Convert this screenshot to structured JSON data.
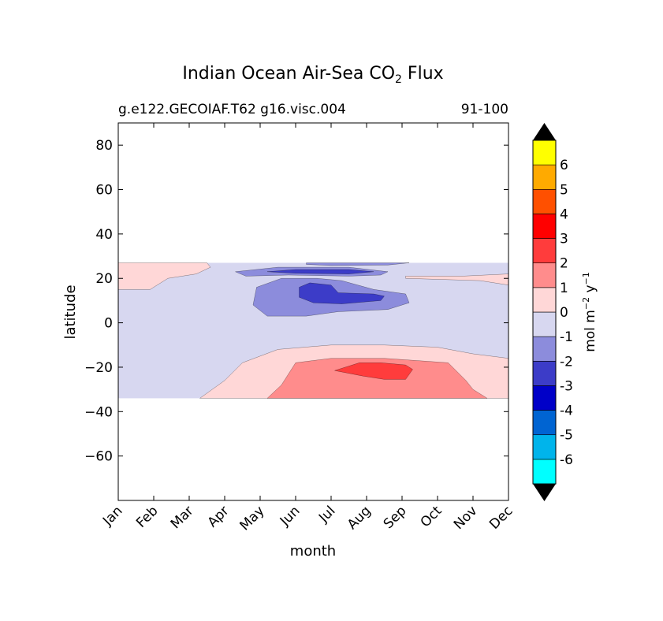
{
  "chart_data": {
    "type": "contour",
    "title_prefix": "Indian Ocean Air-Sea CO",
    "title_sub": "2",
    "title_suffix": " Flux",
    "subtitle_left": "g.e122.GECOIAF.T62 g16.visc.004",
    "subtitle_right": "91-100",
    "xlabel": "month",
    "ylabel": "latitude",
    "x_categories": [
      "Jan",
      "Feb",
      "Mar",
      "Apr",
      "May",
      "Jun",
      "Jul",
      "Aug",
      "Sep",
      "Oct",
      "Nov",
      "Dec"
    ],
    "xlim": [
      0,
      11
    ],
    "ylim": [
      -80,
      90
    ],
    "y_ticks": [
      80,
      60,
      40,
      20,
      0,
      -20,
      -40,
      -60
    ],
    "y_tick_labels": [
      "80",
      "60",
      "40",
      "20",
      "0",
      "−20",
      "−40",
      "−60"
    ],
    "data_lat_range": [
      -34,
      27
    ],
    "colorbar": {
      "label_main": "mol m",
      "label_exp1": "−2",
      "label_mid": "  y",
      "label_exp2": "−1",
      "levels": [
        "-6",
        "-5",
        "-4",
        "-3",
        "-2",
        "-1",
        "0",
        "1",
        "2",
        "3",
        "4",
        "5",
        "6"
      ],
      "level_values": [
        -6,
        -5,
        -4,
        -3,
        -2,
        -1,
        0,
        1,
        2,
        3,
        4,
        5,
        6
      ],
      "colors": [
        "#00ffff",
        "#00b4eb",
        "#0064d2",
        "#0000c8",
        "#3c3cc8",
        "#8c8cdc",
        "#d7d7f0",
        "#ffd7d7",
        "#ff8c8c",
        "#ff3c3c",
        "#ff0000",
        "#ff5000",
        "#ffaa00",
        "#ffff00"
      ],
      "extend_color": "#000000"
    },
    "regions": [
      {
        "name": "flux-0-to-1-north",
        "level": "0 to 1",
        "color": "#ffd7d7",
        "points": [
          [
            0,
            27
          ],
          [
            2.5,
            27
          ],
          [
            2.6,
            25
          ],
          [
            2.2,
            22
          ],
          [
            1.4,
            20
          ],
          [
            0.9,
            15
          ],
          [
            0,
            15
          ]
        ]
      },
      {
        "name": "flux-0-to-1-northeast",
        "level": "0 to 1",
        "color": "#ffd7d7",
        "points": [
          [
            8.1,
            21
          ],
          [
            9.7,
            21
          ],
          [
            11,
            22
          ],
          [
            11,
            17
          ],
          [
            10.2,
            19
          ],
          [
            8.1,
            20
          ]
        ]
      },
      {
        "name": "flux-0-to-1-south",
        "level": "0 to 1",
        "color": "#ffd7d7",
        "points": [
          [
            2.3,
            -34
          ],
          [
            3,
            -26
          ],
          [
            3.5,
            -18
          ],
          [
            4.5,
            -12
          ],
          [
            6,
            -10
          ],
          [
            7.5,
            -10
          ],
          [
            9,
            -11
          ],
          [
            10,
            -14
          ],
          [
            11,
            -16
          ],
          [
            11,
            -34
          ]
        ]
      },
      {
        "name": "flux-1-to-2-south",
        "level": "1 to 2",
        "color": "#ff8c8c",
        "points": [
          [
            4.2,
            -34
          ],
          [
            4.6,
            -28
          ],
          [
            5,
            -18
          ],
          [
            6,
            -16
          ],
          [
            7.5,
            -16
          ],
          [
            9.3,
            -18
          ],
          [
            9.8,
            -26
          ],
          [
            10,
            -30
          ],
          [
            10.4,
            -34
          ]
        ]
      },
      {
        "name": "flux-2-to-3-south",
        "level": "2 to 3",
        "color": "#ff3c3c",
        "points": [
          [
            6.1,
            -21.5
          ],
          [
            6.8,
            -18
          ],
          [
            7.4,
            -18
          ],
          [
            8.1,
            -19
          ],
          [
            8.3,
            -21
          ],
          [
            8.1,
            -25.5
          ],
          [
            7.5,
            -25.5
          ],
          [
            6.9,
            -24
          ]
        ]
      },
      {
        "name": "flux-minus-1-to-minus-2-north",
        "level": "-1 to -2",
        "color": "#8c8cdc",
        "points": [
          [
            3.9,
            16
          ],
          [
            4.6,
            20
          ],
          [
            5.6,
            20
          ],
          [
            6.3,
            19
          ],
          [
            7.2,
            15
          ],
          [
            8.1,
            13
          ],
          [
            8.2,
            9
          ],
          [
            7.6,
            6
          ],
          [
            6.2,
            5
          ],
          [
            5.3,
            3
          ],
          [
            4.2,
            3
          ],
          [
            3.8,
            8
          ]
        ]
      },
      {
        "name": "flux-minus-1-to-minus-2-band",
        "level": "-1 to -2",
        "color": "#8c8cdc",
        "points": [
          [
            3.3,
            23
          ],
          [
            4.5,
            25
          ],
          [
            6.5,
            25
          ],
          [
            7.6,
            23
          ],
          [
            7.4,
            21.5
          ],
          [
            6.5,
            21
          ],
          [
            4.8,
            21.5
          ],
          [
            3.6,
            21
          ]
        ]
      },
      {
        "name": "flux-minus-1-to-minus-2-top",
        "level": "-1 to -2",
        "color": "#8c8cdc",
        "points": [
          [
            5.3,
            27
          ],
          [
            8.2,
            27
          ],
          [
            7.6,
            26
          ],
          [
            6,
            25.8
          ],
          [
            5.3,
            26.3
          ]
        ]
      },
      {
        "name": "flux-minus-2-to-minus-3-north",
        "level": "-2 to -3",
        "color": "#3c3cc8",
        "points": [
          [
            5.1,
            16
          ],
          [
            5.4,
            18
          ],
          [
            6,
            17
          ],
          [
            6.2,
            13.5
          ],
          [
            7.2,
            13
          ],
          [
            7.5,
            12
          ],
          [
            7.4,
            10
          ],
          [
            6.3,
            8.5
          ],
          [
            5.5,
            9
          ],
          [
            5.1,
            11.5
          ]
        ]
      },
      {
        "name": "flux-minus-2-to-minus-3-band",
        "level": "-2 to -3",
        "color": "#3c3cc8",
        "points": [
          [
            4.2,
            23
          ],
          [
            5,
            24
          ],
          [
            6.5,
            24
          ],
          [
            7.2,
            23
          ],
          [
            6.5,
            22
          ],
          [
            5,
            22.3
          ]
        ]
      }
    ]
  }
}
